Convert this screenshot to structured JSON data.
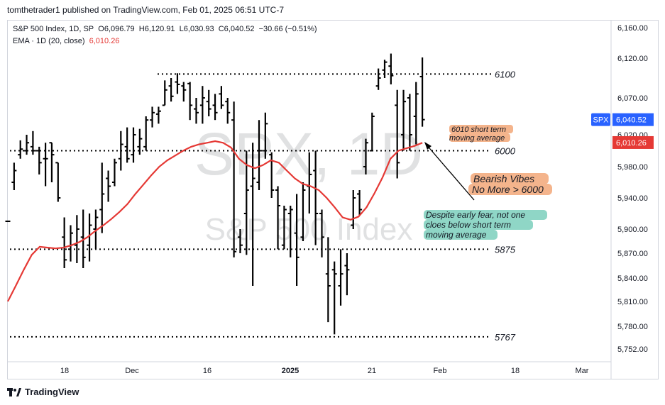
{
  "header": {
    "published": "tomthetrader1 published on TradingView.com, Feb 01, 2025 06:51 UTC-7"
  },
  "legend": {
    "symbol_line": "S&P 500 Index, 1D, SP",
    "open": "O6,096.79",
    "high": "H6,120.91",
    "low": "L6,030.93",
    "close": "C6,040.52",
    "change": "−30.66 (−0.51%)",
    "ema_label": "EMA · 1D (20, close)",
    "ema_value": "6,010.26"
  },
  "watermark": {
    "ticker": "SPX, 1D",
    "name": "S&P 500 Index"
  },
  "footer": {
    "brand": "TradingView"
  },
  "colors": {
    "bars": "#000000",
    "ema": "#e53935",
    "last_price_badge": "#2962ff",
    "ema_badge": "#e53935",
    "annotation_orange": "#f4b48c",
    "annotation_teal": "#8fd6c6",
    "grid_border": "#d1d4dc"
  },
  "chart_data": {
    "type": "ohlc-bar",
    "y_axis": {
      "ticks": [
        5752,
        5780,
        5810,
        5840,
        5870,
        5900,
        5940,
        5980,
        6020,
        6070,
        6120,
        6160
      ],
      "tick_labels": [
        "5,752.00",
        "5,780.00",
        "5,810.00",
        "5,840.00",
        "5,870.00",
        "5,900.00",
        "5,940.00",
        "5,980.00",
        "6,020.00",
        "6,070.00",
        "6,120.00",
        "6,160.00"
      ],
      "range": [
        5730,
        6170
      ]
    },
    "x_axis": {
      "ticks": [
        "18",
        "Dec",
        "16",
        "2025",
        "21",
        "Feb",
        "18",
        "Mar"
      ]
    },
    "last_price": {
      "label": "SPX",
      "value": 6040.52,
      "value_label": "6,040.52"
    },
    "ema_last": {
      "value": 6010.26,
      "value_label": "6,010.26"
    },
    "levels": [
      {
        "value": 6100,
        "label": "6100"
      },
      {
        "value": 6000,
        "label": "6000"
      },
      {
        "value": 5875,
        "label": "5875"
      },
      {
        "value": 5767,
        "label": "5767"
      }
    ],
    "annotations": [
      {
        "lines": [
          "6010 short term",
          "moving average"
        ],
        "style": "orange"
      },
      {
        "lines": [
          "Bearish Vibes",
          "No More > 6000"
        ],
        "style": "orange"
      },
      {
        "lines": [
          "Despite early fear, not one",
          "cloes below short term",
          "moving average"
        ],
        "style": "teal"
      }
    ],
    "bars": [
      {
        "o": 5910,
        "h": 5910,
        "l": 5910,
        "c": 5910
      },
      {
        "o": 5960,
        "h": 5985,
        "l": 5950,
        "c": 5975
      },
      {
        "o": 5995,
        "h": 6013,
        "l": 5990,
        "c": 6002
      },
      {
        "o": 6000,
        "h": 6020,
        "l": 5995,
        "c": 6010
      },
      {
        "o": 6005,
        "h": 6025,
        "l": 5995,
        "c": 6000
      },
      {
        "o": 6000,
        "h": 6005,
        "l": 5970,
        "c": 5985
      },
      {
        "o": 5990,
        "h": 6010,
        "l": 5955,
        "c": 5990
      },
      {
        "o": 6010,
        "h": 6010,
        "l": 5960,
        "c": 5995
      },
      {
        "o": 5985,
        "h": 5985,
        "l": 5935,
        "c": 5940
      },
      {
        "o": 5890,
        "h": 5915,
        "l": 5852,
        "c": 5862
      },
      {
        "o": 5875,
        "h": 5905,
        "l": 5860,
        "c": 5895
      },
      {
        "o": 5880,
        "h": 5918,
        "l": 5858,
        "c": 5900
      },
      {
        "o": 5890,
        "h": 5925,
        "l": 5852,
        "c": 5865
      },
      {
        "o": 5880,
        "h": 5920,
        "l": 5860,
        "c": 5905
      },
      {
        "o": 5900,
        "h": 5925,
        "l": 5875,
        "c": 5915
      },
      {
        "o": 5925,
        "h": 5985,
        "l": 5895,
        "c": 5945
      },
      {
        "o": 5965,
        "h": 5975,
        "l": 5935,
        "c": 5955
      },
      {
        "o": 5960,
        "h": 5990,
        "l": 5955,
        "c": 5985
      },
      {
        "o": 5990,
        "h": 6025,
        "l": 5975,
        "c": 6008
      },
      {
        "o": 6005,
        "h": 6030,
        "l": 5985,
        "c": 5990
      },
      {
        "o": 5995,
        "h": 6030,
        "l": 5985,
        "c": 6020
      },
      {
        "o": 6005,
        "h": 6028,
        "l": 5995,
        "c": 6015
      },
      {
        "o": 6005,
        "h": 6045,
        "l": 6000,
        "c": 6040
      },
      {
        "o": 6040,
        "h": 6058,
        "l": 6030,
        "c": 6050
      },
      {
        "o": 6048,
        "h": 6058,
        "l": 6035,
        "c": 6052
      },
      {
        "o": 6060,
        "h": 6092,
        "l": 6060,
        "c": 6080
      },
      {
        "o": 6085,
        "h": 6095,
        "l": 6065,
        "c": 6072
      },
      {
        "o": 6090,
        "h": 6101,
        "l": 6075,
        "c": 6087
      },
      {
        "o": 6085,
        "h": 6090,
        "l": 6065,
        "c": 6080
      },
      {
        "o": 6088,
        "h": 6090,
        "l": 6040,
        "c": 6060
      },
      {
        "o": 6055,
        "h": 6070,
        "l": 6035,
        "c": 6050
      },
      {
        "o": 6060,
        "h": 6085,
        "l": 6035,
        "c": 6070
      },
      {
        "o": 6065,
        "h": 6080,
        "l": 6045,
        "c": 6055
      },
      {
        "o": 6060,
        "h": 6075,
        "l": 6040,
        "c": 6050
      },
      {
        "o": 6075,
        "h": 6085,
        "l": 6055,
        "c": 6060
      },
      {
        "o": 6065,
        "h": 6070,
        "l": 6035,
        "c": 6050
      },
      {
        "o": 6040,
        "h": 6065,
        "l": 5865,
        "c": 5872
      },
      {
        "o": 5890,
        "h": 5900,
        "l": 5870,
        "c": 5880
      },
      {
        "o": 5920,
        "h": 6000,
        "l": 5868,
        "c": 5950
      },
      {
        "o": 5955,
        "h": 6010,
        "l": 5830,
        "c": 5965
      },
      {
        "o": 5960,
        "h": 6040,
        "l": 5950,
        "c": 6000
      },
      {
        "o": 6000,
        "h": 6050,
        "l": 5990,
        "c": 6035
      },
      {
        "o": 5995,
        "h": 5998,
        "l": 5940,
        "c": 5950
      },
      {
        "o": 5950,
        "h": 5955,
        "l": 5875,
        "c": 5930
      },
      {
        "o": 5880,
        "h": 5930,
        "l": 5875,
        "c": 5925
      },
      {
        "o": 5920,
        "h": 5930,
        "l": 5865,
        "c": 5925
      },
      {
        "o": 5895,
        "h": 5945,
        "l": 5830,
        "c": 5865
      },
      {
        "o": 5890,
        "h": 5960,
        "l": 5885,
        "c": 5950
      },
      {
        "o": 5955,
        "h": 5998,
        "l": 5920,
        "c": 5970
      },
      {
        "o": 5975,
        "h": 6000,
        "l": 5880,
        "c": 5920
      },
      {
        "o": 5920,
        "h": 5925,
        "l": 5865,
        "c": 5890
      },
      {
        "o": 5845,
        "h": 5890,
        "l": 5785,
        "c": 5830
      },
      {
        "o": 5850,
        "h": 5860,
        "l": 5770,
        "c": 5845
      },
      {
        "o": 5830,
        "h": 5875,
        "l": 5805,
        "c": 5845
      },
      {
        "o": 5855,
        "h": 5870,
        "l": 5818,
        "c": 5850
      },
      {
        "o": 5905,
        "h": 5950,
        "l": 5900,
        "c": 5940
      },
      {
        "o": 5945,
        "h": 5950,
        "l": 5918,
        "c": 5925
      },
      {
        "o": 5980,
        "h": 6015,
        "l": 5970,
        "c": 6010
      },
      {
        "o": 6000,
        "h": 6050,
        "l": 6000,
        "c": 6045
      },
      {
        "o": 6085,
        "h": 6107,
        "l": 6080,
        "c": 6095
      },
      {
        "o": 6105,
        "h": 6118,
        "l": 6095,
        "c": 6115
      },
      {
        "o": 6110,
        "h": 6126,
        "l": 6087,
        "c": 6098
      },
      {
        "o": 6060,
        "h": 6080,
        "l": 5965,
        "c": 5985
      },
      {
        "o": 6020,
        "h": 6080,
        "l": 6000,
        "c": 6065
      },
      {
        "o": 6070,
        "h": 6075,
        "l": 6000,
        "c": 6020
      },
      {
        "o": 6045,
        "h": 6090,
        "l": 6008,
        "c": 6075
      },
      {
        "o": 6096.79,
        "h": 6120.91,
        "l": 6030.93,
        "c": 6040.52
      }
    ],
    "ema": [
      5810,
      5830,
      5850,
      5868,
      5878,
      5877,
      5876,
      5877,
      5880,
      5884,
      5890,
      5898,
      5905,
      5913,
      5922,
      5932,
      5945,
      5957,
      5969,
      5980,
      5988,
      5994,
      6000,
      6005,
      6008,
      6010,
      6012,
      6010,
      6004,
      5990,
      5982,
      5978,
      5982,
      5988,
      5985,
      5975,
      5965,
      5958,
      5955,
      5950,
      5940,
      5928,
      5915,
      5912,
      5916,
      5928,
      5946,
      5966,
      5990,
      6000,
      6003,
      6006,
      6010
    ]
  }
}
